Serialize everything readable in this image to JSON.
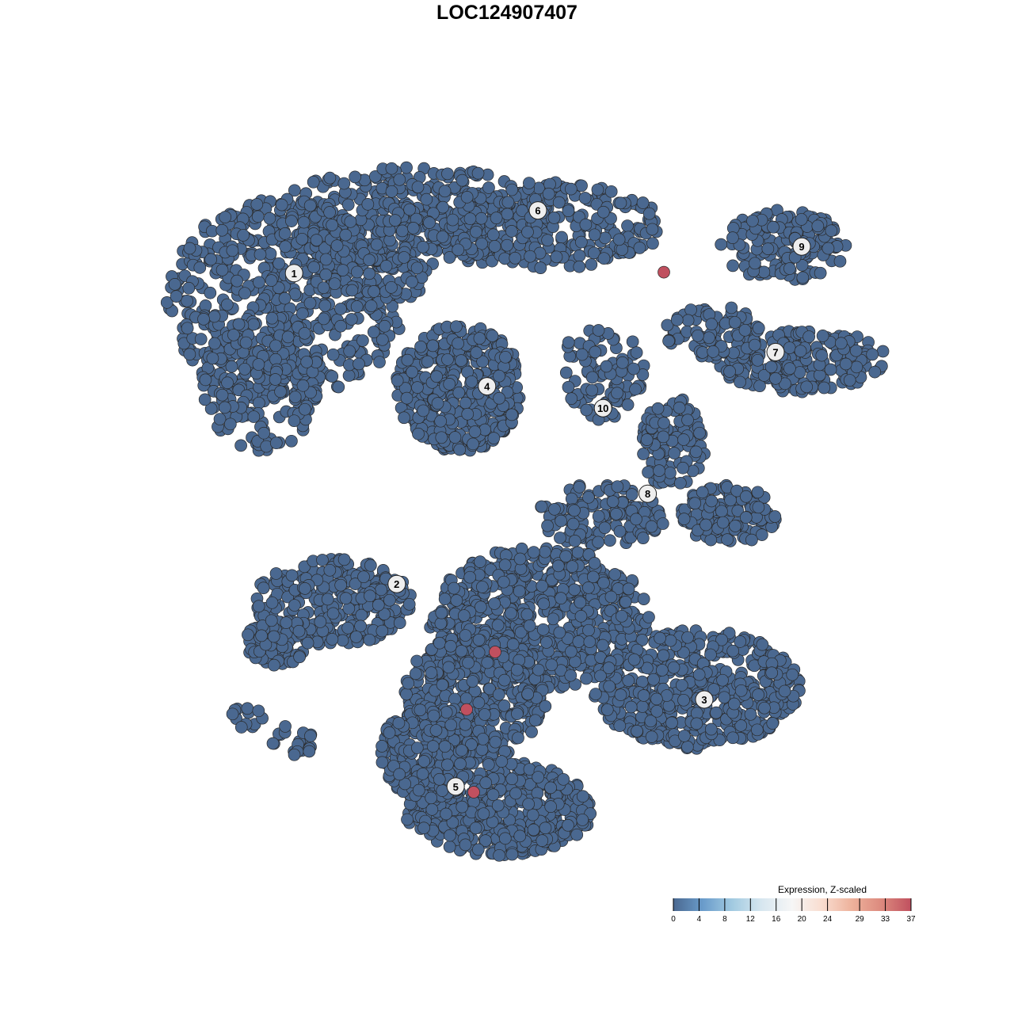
{
  "chart_data": {
    "type": "scatter",
    "title": "LOC124907407",
    "xlabel": "",
    "ylabel": "",
    "grid": false,
    "axes_visible": false,
    "base_color": "#4a6890",
    "highlight_color": "#c0505f",
    "cluster_labels": [
      {
        "label": "1",
        "x": -22.4,
        "y": 24.6
      },
      {
        "label": "2",
        "x": -11.6,
        "y": -8.1
      },
      {
        "label": "3",
        "x": 20.75,
        "y": -20.25
      },
      {
        "label": "4",
        "x": -2.1,
        "y": 12.7
      },
      {
        "label": "5",
        "x": -5.4,
        "y": -29.4
      },
      {
        "label": "6",
        "x": 3.25,
        "y": 31.2
      },
      {
        "label": "7",
        "x": 28.25,
        "y": 16.3
      },
      {
        "label": "8",
        "x": 14.8,
        "y": 1.4
      },
      {
        "label": "9",
        "x": 31.0,
        "y": 27.4
      },
      {
        "label": "10",
        "x": 10.1,
        "y": 10.4
      }
    ],
    "highlighted_points": [
      {
        "x": 16.5,
        "y": 24.7,
        "value": 37
      },
      {
        "x": -1.25,
        "y": -15.25,
        "value": 37
      },
      {
        "x": -4.25,
        "y": -21.3,
        "value": 37
      },
      {
        "x": -3.5,
        "y": -30.0,
        "value": 37
      }
    ],
    "legend": {
      "title": "Expression, Z-scaled",
      "position": "bottom-right",
      "ticks": [
        0,
        4,
        8,
        12,
        16,
        20,
        24,
        29,
        33,
        37
      ],
      "range": [
        0,
        37
      ],
      "colors": [
        "#4a6890",
        "#6a9ccb",
        "#a3cbe1",
        "#d8e7f0",
        "#f6f6f6",
        "#f9ddd0",
        "#eeb29c",
        "#dc8a7e",
        "#c0505f"
      ]
    }
  }
}
